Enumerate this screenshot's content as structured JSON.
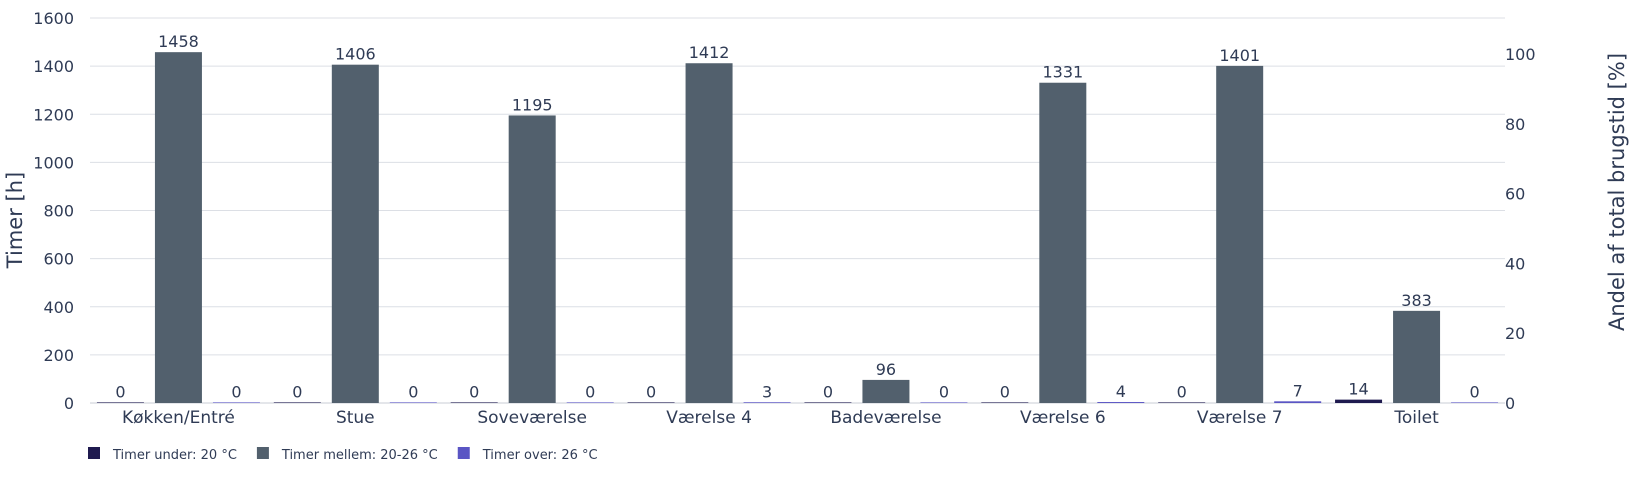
{
  "chart_data": {
    "type": "bar",
    "categories": [
      "Køkken/Entré",
      "Stue",
      "Soveværelse",
      "Værelse 4",
      "Badeværelse",
      "Værelse 6",
      "Værelse 7",
      "Toilet"
    ],
    "series": [
      {
        "name": "Timer under: 20 °C",
        "color": "#1f1a4f",
        "values": [
          0,
          0,
          0,
          0,
          0,
          0,
          0,
          14
        ]
      },
      {
        "name": "Timer mellem: 20-26 °C",
        "color": "#52606d",
        "values": [
          1458,
          1406,
          1195,
          1412,
          96,
          1331,
          1401,
          383
        ]
      },
      {
        "name": "Timer over: 26 °C",
        "color": "#5a55c4",
        "values": [
          0,
          0,
          0,
          3,
          0,
          4,
          7,
          0
        ]
      }
    ],
    "ylabel": "Timer [h]",
    "ylim": [
      0,
      1600
    ],
    "yticks": [
      0,
      200,
      400,
      600,
      800,
      1000,
      1200,
      1400,
      1600
    ],
    "y2label": "Andel af total brugstid [%]",
    "y2lim": [
      0,
      110.34
    ],
    "y2ticks": [
      0,
      20,
      40,
      60,
      80,
      100
    ],
    "grid": true,
    "legend_position": "bottom-left"
  }
}
